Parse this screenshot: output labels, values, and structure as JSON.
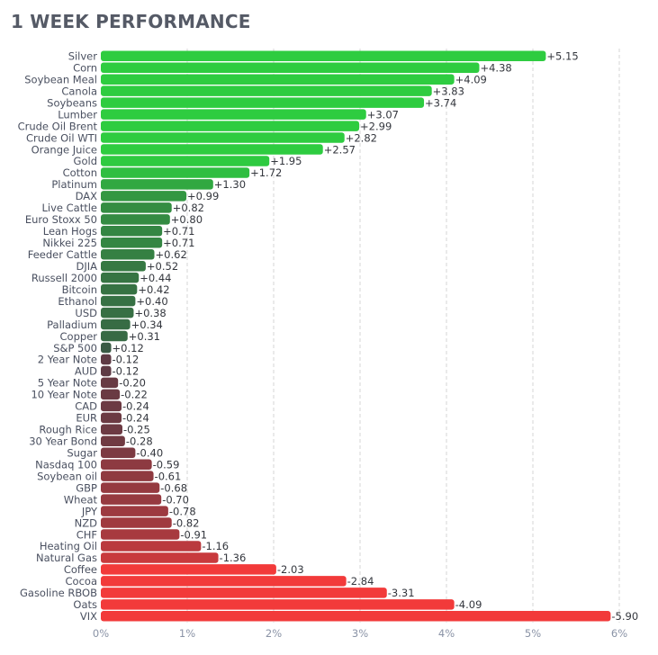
{
  "title": "1 WEEK PERFORMANCE",
  "chart_data": {
    "type": "bar",
    "orientation": "horizontal",
    "title": "1 WEEK PERFORMANCE",
    "xlabel": "",
    "ylabel": "",
    "xlim": [
      0,
      6
    ],
    "x_ticks": [
      "0%",
      "1%",
      "2%",
      "3%",
      "4%",
      "5%",
      "6%"
    ],
    "grid": true,
    "categories": [
      "Silver",
      "Corn",
      "Soybean Meal",
      "Canola",
      "Soybeans",
      "Lumber",
      "Crude Oil Brent",
      "Crude Oil WTI",
      "Orange Juice",
      "Gold",
      "Cotton",
      "Platinum",
      "DAX",
      "Live Cattle",
      "Euro Stoxx 50",
      "Lean Hogs",
      "Nikkei 225",
      "Feeder Cattle",
      "DJIA",
      "Russell 2000",
      "Bitcoin",
      "Ethanol",
      "USD",
      "Palladium",
      "Copper",
      "S&P 500",
      "2 Year Note",
      "AUD",
      "5 Year Note",
      "10 Year Note",
      "CAD",
      "EUR",
      "Rough Rice",
      "30 Year Bond",
      "Sugar",
      "Nasdaq 100",
      "Soybean oil",
      "GBP",
      "Wheat",
      "JPY",
      "NZD",
      "CHF",
      "Heating Oil",
      "Natural Gas",
      "Coffee",
      "Cocoa",
      "Gasoline RBOB",
      "Oats",
      "VIX"
    ],
    "values": [
      5.15,
      4.38,
      4.09,
      3.83,
      3.74,
      3.07,
      2.99,
      2.82,
      2.57,
      1.95,
      1.72,
      1.3,
      0.99,
      0.82,
      0.8,
      0.71,
      0.71,
      0.62,
      0.52,
      0.44,
      0.42,
      0.4,
      0.38,
      0.34,
      0.31,
      0.12,
      -0.12,
      -0.12,
      -0.2,
      -0.22,
      -0.24,
      -0.24,
      -0.25,
      -0.28,
      -0.4,
      -0.59,
      -0.61,
      -0.68,
      -0.7,
      -0.78,
      -0.82,
      -0.91,
      -1.16,
      -1.36,
      -2.03,
      -2.84,
      -3.31,
      -4.09,
      -5.9
    ],
    "value_labels": [
      "+5.15",
      "+4.38",
      "+4.09",
      "+3.83",
      "+3.74",
      "+3.07",
      "+2.99",
      "+2.82",
      "+2.57",
      "+1.95",
      "+1.72",
      "+1.30",
      "+0.99",
      "+0.82",
      "+0.80",
      "+0.71",
      "+0.71",
      "+0.62",
      "+0.52",
      "+0.44",
      "+0.42",
      "+0.40",
      "+0.38",
      "+0.34",
      "+0.31",
      "+0.12",
      "-0.12",
      "-0.12",
      "-0.20",
      "-0.22",
      "-0.24",
      "-0.24",
      "-0.25",
      "-0.28",
      "-0.40",
      "-0.59",
      "-0.61",
      "-0.68",
      "-0.70",
      "-0.78",
      "-0.82",
      "-0.91",
      "-1.16",
      "-1.36",
      "-2.03",
      "-2.84",
      "-3.31",
      "-4.09",
      "-5.90"
    ],
    "note": "bar length shows absolute value of weekly change",
    "colors": {
      "positive_strong": "#2ecc40",
      "positive_weak": "#3a4a45",
      "negative_weak": "#4a3a45",
      "negative_strong": "#f23a3a"
    }
  }
}
